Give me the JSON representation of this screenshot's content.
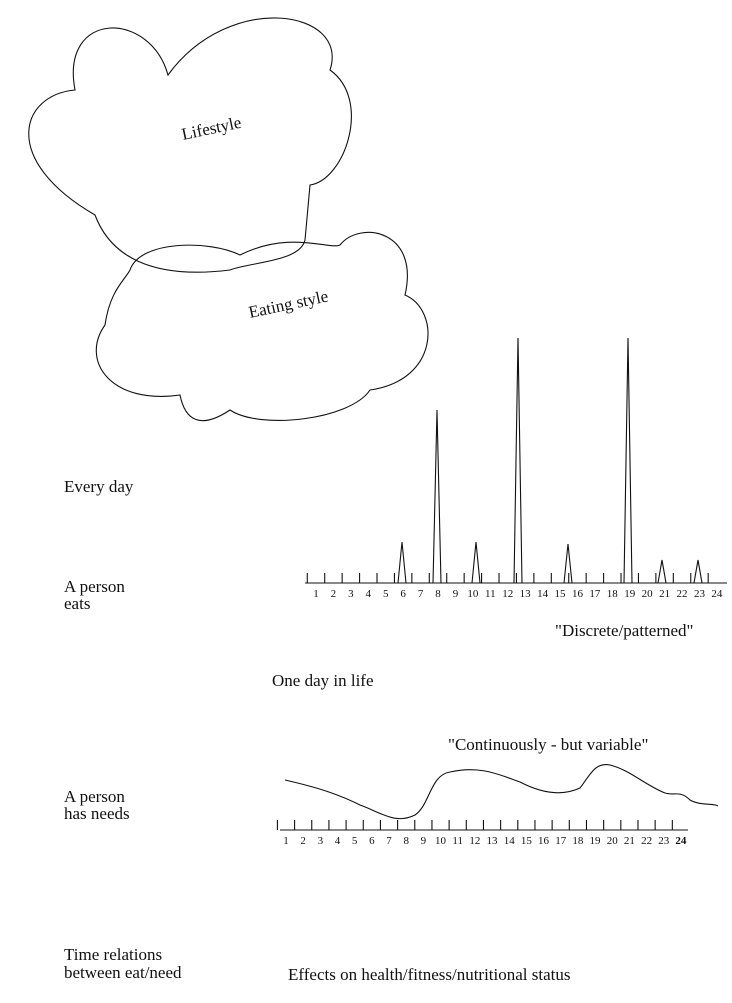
{
  "clouds": {
    "outer": "Lifestyle",
    "inner": "Eating style"
  },
  "left_labels": {
    "every_day": "Every day",
    "eats": [
      "A person",
      "eats"
    ],
    "needs": [
      "A person",
      "has needs"
    ],
    "relations": [
      "Time relations",
      "between eat/need"
    ]
  },
  "eating_chart": {
    "axis_labels": [
      "1",
      "2",
      "3",
      "4",
      "5",
      "6",
      "7",
      "8",
      "9",
      "10",
      "11",
      "12",
      "13",
      "14",
      "15",
      "16",
      "17",
      "18",
      "19",
      "20",
      "21",
      "22",
      "23",
      "24"
    ],
    "caption": "\"Discrete/patterned\"",
    "subtitle": "One day in life"
  },
  "needs_chart": {
    "caption": "\"Continuously - but variable\"",
    "axis_labels": [
      "1",
      "2",
      "3",
      "4",
      "5",
      "6",
      "7",
      "8",
      "9",
      "10",
      "11",
      "12",
      "13",
      "14",
      "15",
      "16",
      "17",
      "18",
      "19",
      "20",
      "21",
      "22",
      "23",
      "24"
    ]
  },
  "footer": "Effects on health/fitness/nutritional status"
}
